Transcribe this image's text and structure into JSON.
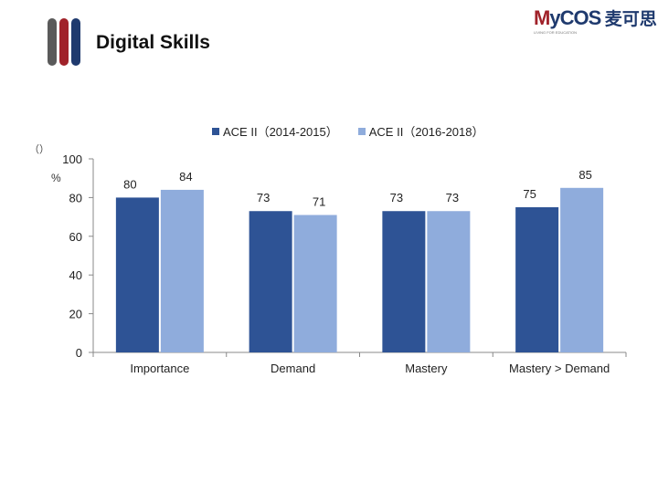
{
  "header": {
    "title": "Digital Skills",
    "logo_text": "MyCOS",
    "logo_cn": "麦可思",
    "logo_sub": "LIVING FOR EDUCATION"
  },
  "colors": {
    "series1": "#2e5395",
    "series2": "#8facdc",
    "decor1": "#5a5a5a",
    "decor2": "#a0222a",
    "decor3": "#1f3a6e"
  },
  "chart_data": {
    "type": "bar",
    "title": "",
    "xlabel": "",
    "ylabel": "%",
    "ylabel_top": "（）",
    "categories": [
      "Importance",
      "Demand",
      "Mastery",
      "Mastery > Demand"
    ],
    "series": [
      {
        "name": "ACE II（2014-2015）",
        "values": [
          80,
          73,
          73,
          75
        ]
      },
      {
        "name": "ACE II（2016-2018）",
        "values": [
          84,
          71,
          73,
          85
        ]
      }
    ],
    "ylim": [
      0,
      100
    ],
    "yticks": [
      0,
      20,
      40,
      60,
      80,
      100
    ],
    "legend_position": "top",
    "grid": false
  }
}
